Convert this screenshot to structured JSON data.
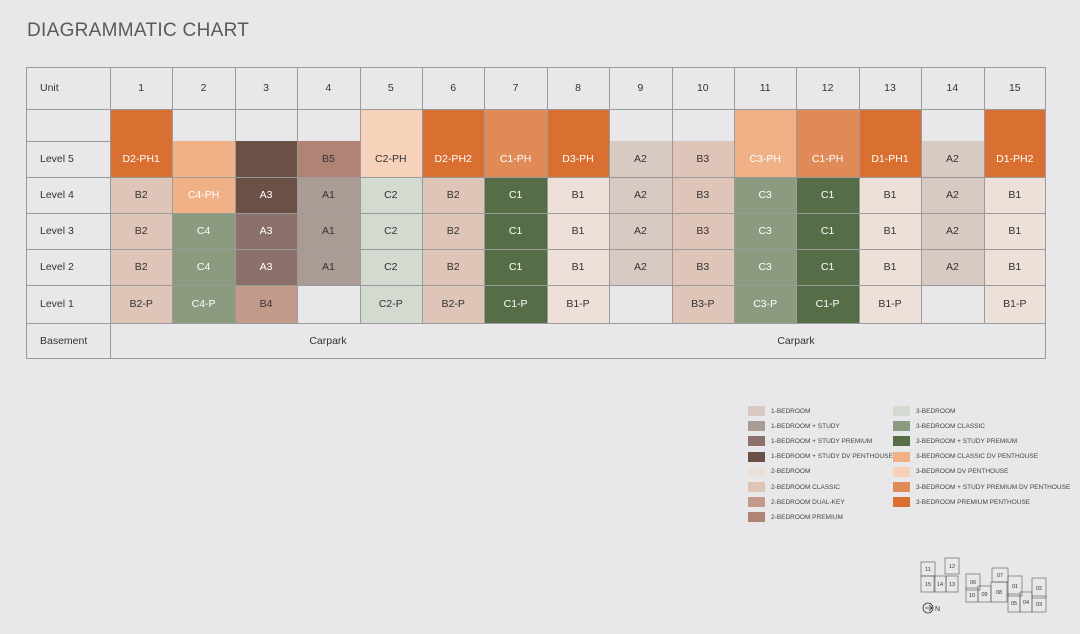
{
  "title": "DIAGRAMMATIC CHART",
  "colors": {
    "c1": "#d8c9c2",
    "c2": "#aa9c95",
    "c3": "#8b716a",
    "c4": "#6b5046",
    "c5": "#ede0d9",
    "c6": "#dfc5b8",
    "c7": "#c39a89",
    "c8": "#b08474",
    "c9": "#d3dad0",
    "c10": "#8c9b80",
    "c11": "#566e48",
    "c12": "#efb185",
    "c13": "#f6d2bb",
    "c14": "#df8a57",
    "c15": "#d96f31",
    "border": "#9a9a9a",
    "background": "#e8e8ea"
  },
  "table": {
    "unit_label": "Unit",
    "units": [
      "1",
      "2",
      "3",
      "4",
      "5",
      "6",
      "7",
      "8",
      "9",
      "10",
      "11",
      "12",
      "13",
      "14",
      "15"
    ],
    "level_labels": [
      "Level 5",
      "Level 4",
      "Level 3",
      "Level 2",
      "Level 1"
    ],
    "basement_label": "Basement",
    "carpark_labels": [
      "Carpark",
      "Carpark"
    ],
    "columns": [
      {
        "cells": [
          {
            "t": "D2-PH1",
            "c": "c15",
            "span": 2
          },
          {
            "t": "B2",
            "c": "c6"
          },
          {
            "t": "B2",
            "c": "c6"
          },
          {
            "t": "B2",
            "c": "c6"
          },
          {
            "t": "B2-P",
            "c": "c6"
          }
        ]
      },
      {
        "cells": [
          {
            "t": "",
            "c": "none"
          },
          {
            "t": "C4-PH",
            "c": "c12",
            "span": 2
          },
          {
            "t": "C4",
            "c": "c10"
          },
          {
            "t": "C4",
            "c": "c10"
          },
          {
            "t": "C4-P",
            "c": "c10"
          }
        ]
      },
      {
        "cells": [
          {
            "t": "",
            "c": "none"
          },
          {
            "t": "A3",
            "c": "c4",
            "span": 2
          },
          {
            "t": "A3",
            "c": "c3"
          },
          {
            "t": "A3",
            "c": "c3"
          },
          {
            "t": "B4",
            "c": "c7"
          }
        ]
      },
      {
        "cells": [
          {
            "t": "",
            "c": "none"
          },
          {
            "t": "B5",
            "c": "c8"
          },
          {
            "t": "A1",
            "c": "c2"
          },
          {
            "t": "A1",
            "c": "c2"
          },
          {
            "t": "A1",
            "c": "c2"
          },
          {
            "t": "",
            "c": "none"
          }
        ]
      },
      {
        "cells": [
          {
            "t": "C2-PH",
            "c": "c13",
            "span": 2
          },
          {
            "t": "C2",
            "c": "c9"
          },
          {
            "t": "C2",
            "c": "c9"
          },
          {
            "t": "C2",
            "c": "c9"
          },
          {
            "t": "C2-P",
            "c": "c9"
          }
        ]
      },
      {
        "cells": [
          {
            "t": "D2-PH2",
            "c": "c15",
            "span": 2
          },
          {
            "t": "B2",
            "c": "c6"
          },
          {
            "t": "B2",
            "c": "c6"
          },
          {
            "t": "B2",
            "c": "c6"
          },
          {
            "t": "B2-P",
            "c": "c6"
          }
        ]
      },
      {
        "cells": [
          {
            "t": "C1-PH",
            "c": "c14",
            "span": 2
          },
          {
            "t": "C1",
            "c": "c11"
          },
          {
            "t": "C1",
            "c": "c11"
          },
          {
            "t": "C1",
            "c": "c11"
          },
          {
            "t": "C1-P",
            "c": "c11"
          }
        ]
      },
      {
        "cells": [
          {
            "t": "D3-PH",
            "c": "c15",
            "span": 2
          },
          {
            "t": "B1",
            "c": "c5"
          },
          {
            "t": "B1",
            "c": "c5"
          },
          {
            "t": "B1",
            "c": "c5"
          },
          {
            "t": "B1-P",
            "c": "c5"
          }
        ]
      },
      {
        "cells": [
          {
            "t": "",
            "c": "none"
          },
          {
            "t": "A2",
            "c": "c1"
          },
          {
            "t": "A2",
            "c": "c1"
          },
          {
            "t": "A2",
            "c": "c1"
          },
          {
            "t": "A2",
            "c": "c1"
          },
          {
            "t": "",
            "c": "none"
          }
        ]
      },
      {
        "cells": [
          {
            "t": "",
            "c": "none"
          },
          {
            "t": "B3",
            "c": "c6"
          },
          {
            "t": "B3",
            "c": "c6"
          },
          {
            "t": "B3",
            "c": "c6"
          },
          {
            "t": "B3",
            "c": "c6"
          },
          {
            "t": "B3-P",
            "c": "c6"
          }
        ]
      },
      {
        "cells": [
          {
            "t": "C3-PH",
            "c": "c12",
            "span": 2
          },
          {
            "t": "C3",
            "c": "c10"
          },
          {
            "t": "C3",
            "c": "c10"
          },
          {
            "t": "C3",
            "c": "c10"
          },
          {
            "t": "C3-P",
            "c": "c10"
          }
        ]
      },
      {
        "cells": [
          {
            "t": "C1-PH",
            "c": "c14",
            "span": 2
          },
          {
            "t": "C1",
            "c": "c11"
          },
          {
            "t": "C1",
            "c": "c11"
          },
          {
            "t": "C1",
            "c": "c11"
          },
          {
            "t": "C1-P",
            "c": "c11"
          }
        ]
      },
      {
        "cells": [
          {
            "t": "D1-PH1",
            "c": "c15",
            "span": 2
          },
          {
            "t": "B1",
            "c": "c5"
          },
          {
            "t": "B1",
            "c": "c5"
          },
          {
            "t": "B1",
            "c": "c5"
          },
          {
            "t": "B1-P",
            "c": "c5"
          }
        ]
      },
      {
        "cells": [
          {
            "t": "",
            "c": "none"
          },
          {
            "t": "A2",
            "c": "c1"
          },
          {
            "t": "A2",
            "c": "c1"
          },
          {
            "t": "A2",
            "c": "c1"
          },
          {
            "t": "A2",
            "c": "c1"
          },
          {
            "t": "",
            "c": "none"
          }
        ]
      },
      {
        "cells": [
          {
            "t": "D1-PH2",
            "c": "c15",
            "span": 2
          },
          {
            "t": "B1",
            "c": "c5"
          },
          {
            "t": "B1",
            "c": "c5"
          },
          {
            "t": "B1",
            "c": "c5"
          },
          {
            "t": "B1-P",
            "c": "c5"
          }
        ]
      }
    ]
  },
  "legend": {
    "left": [
      {
        "label": "1-BEDROOM",
        "c": "c1"
      },
      {
        "label": "1-BEDROOM + STUDY",
        "c": "c2"
      },
      {
        "label": "1-BEDROOM + STUDY PREMIUM",
        "c": "c3"
      },
      {
        "label": "1-BEDROOM + STUDY DV PENTHOUSE",
        "c": "c4"
      },
      {
        "label": "2-BEDROOM",
        "c": "c5"
      },
      {
        "label": "2-BEDROOM CLASSIC",
        "c": "c6"
      },
      {
        "label": "2-BEDROOM DUAL-KEY",
        "c": "c7"
      },
      {
        "label": "2-BEDROOM PREMIUM",
        "c": "c8"
      }
    ],
    "right": [
      {
        "label": "3-BEDROOM",
        "c": "c9"
      },
      {
        "label": "3-BEDROOM CLASSIC",
        "c": "c10"
      },
      {
        "label": "3-BEDROOM + STUDY PREMIUM",
        "c": "c11"
      },
      {
        "label": "3-BEDROOM CLASSIC DV PENTHOUSE",
        "c": "c12"
      },
      {
        "label": "3-BEDROOM DV PENTHOUSE",
        "c": "c13"
      },
      {
        "label": "3-BEDROOM + STUDY PREMIUM DV PENTHOUSE",
        "c": "c14"
      },
      {
        "label": "3-BEDROOM PREMIUM PENTHOUSE",
        "c": "c15"
      }
    ]
  },
  "keyplan": {
    "blocks": [
      "11",
      "12",
      "15",
      "14",
      "13",
      "06",
      "07",
      "10",
      "09",
      "08",
      "01",
      "02",
      "05",
      "04",
      "03"
    ],
    "north_label": "N"
  }
}
